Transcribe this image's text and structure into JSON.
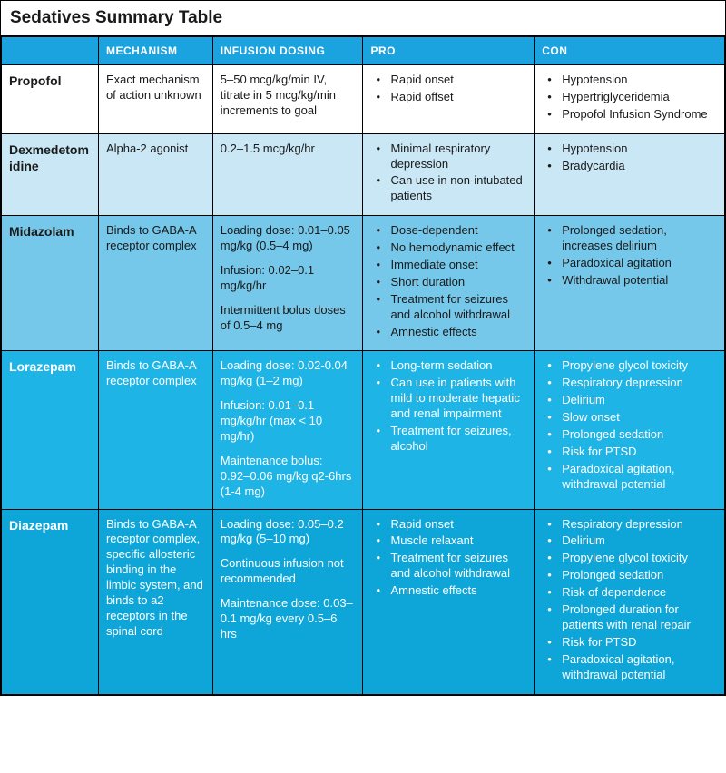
{
  "title": "Sedatives Summary Table",
  "colors": {
    "header": "#1ba3e0",
    "white": "#ffffff",
    "light1": "#c9e7f5",
    "light2": "#76c8ea",
    "med": "#1fb4e6",
    "dark": "#0ea6d8",
    "text_dark": "#1a1a1a",
    "text_light": "#ffffff"
  },
  "headers": [
    "",
    "MECHANISM",
    "INFUSION DOSING",
    "PRO",
    "CON"
  ],
  "rows": [
    {
      "name": "Propofol",
      "bg_key": "white",
      "fg_key": "text_dark",
      "mechanism": "Exact mechanism of action unknown",
      "dosing": [
        "5–50 mcg/kg/min IV, titrate in 5 mcg/kg/min increments to goal"
      ],
      "pro": [
        "Rapid onset",
        "Rapid offset"
      ],
      "con": [
        "Hypotension",
        "Hypertriglyceridemia",
        "Propofol Infusion Syndrome"
      ]
    },
    {
      "name": "Dexmedetomidine",
      "bg_key": "light1",
      "fg_key": "text_dark",
      "mechanism": "Alpha-2 agonist",
      "dosing": [
        "0.2–1.5 mcg/kg/hr"
      ],
      "pro": [
        "Minimal respiratory depression",
        "Can use in non-intubated patients"
      ],
      "con": [
        "Hypotension",
        "Bradycardia"
      ]
    },
    {
      "name": "Midazolam",
      "bg_key": "light2",
      "fg_key": "text_dark",
      "mechanism": "Binds to GABA-A receptor complex",
      "dosing": [
        "Loading dose: 0.01–0.05 mg/kg (0.5–4 mg)",
        "Infusion: 0.02–0.1 mg/kg/hr",
        "Intermittent bolus doses of 0.5–4 mg"
      ],
      "pro": [
        "Dose-dependent",
        "No hemodynamic effect",
        "Immediate onset",
        "Short duration",
        "Treatment for seizures and alcohol withdrawal",
        "Amnestic effects"
      ],
      "con": [
        "Prolonged sedation, increases delirium",
        "Paradoxical agitation",
        "Withdrawal potential"
      ]
    },
    {
      "name": "Lorazepam",
      "bg_key": "med",
      "fg_key": "text_light",
      "mechanism": "Binds to GABA-A receptor complex",
      "dosing": [
        "Loading dose: 0.02-0.04 mg/kg (1–2 mg)",
        "Infusion: 0.01–0.1 mg/kg/hr (max < 10 mg/hr)",
        "Maintenance bolus: 0.92–0.06 mg/kg q2-6hrs (1-4 mg)"
      ],
      "pro": [
        "Long-term sedation",
        "Can use in patients with mild to moderate hepatic and renal impairment",
        "Treatment for seizures, alcohol"
      ],
      "con": [
        "Propylene glycol toxicity",
        "Respiratory depression",
        "Delirium",
        "Slow onset",
        "Prolonged sedation",
        "Risk for PTSD",
        "Paradoxical agitation, withdrawal potential"
      ]
    },
    {
      "name": "Diazepam",
      "bg_key": "dark",
      "fg_key": "text_light",
      "mechanism": "Binds to GABA-A receptor complex, specific allosteric binding in the limbic system, and binds to a2 receptors in the spinal cord",
      "dosing": [
        "Loading dose: 0.05–0.2 mg/kg (5–10 mg)",
        "Continuous infusion not recommended",
        "Maintenance dose: 0.03–0.1 mg/kg every 0.5–6 hrs"
      ],
      "pro": [
        "Rapid onset",
        "Muscle relaxant",
        "Treatment for seizures and alcohol withdrawal",
        "Amnestic effects"
      ],
      "con": [
        "Respiratory depression",
        "Delirium",
        "Propylene glycol toxicity",
        "Prolonged sedation",
        "Risk of dependence",
        "Prolonged duration for patients with renal repair",
        "Risk for PTSD",
        "Paradoxical agitation, withdrawal potential"
      ]
    }
  ]
}
